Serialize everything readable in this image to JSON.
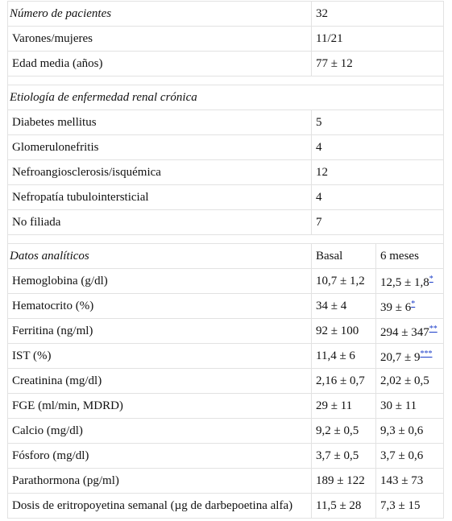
{
  "patients": {
    "header_label": "Número de pacientes",
    "header_value": "32",
    "rows": [
      {
        "label": "Varones/mujeres",
        "value": "11/21"
      },
      {
        "label": "Edad media (años)",
        "value": "77 ± 12"
      }
    ]
  },
  "etiology": {
    "header_label": "Etiología de enfermedad renal crónica",
    "rows": [
      {
        "label": "Diabetes mellitus",
        "value": "5"
      },
      {
        "label": "Glomerulonefritis",
        "value": "4"
      },
      {
        "label": "Nefroangiosclerosis/isquémica",
        "value": "12"
      },
      {
        "label": "Nefropatía tubulointersticial",
        "value": "4"
      },
      {
        "label": "No filiada",
        "value": "7"
      }
    ]
  },
  "lab": {
    "header_label": "Datos analíticos",
    "col_basal": "Basal",
    "col_6m": "6 meses",
    "rows": [
      {
        "label": "Hemoglobina (g/dl)",
        "basal": "10,7 ± 1,2",
        "m6": "12,5 ± 1,8",
        "note": "*"
      },
      {
        "label": "Hematocrito (%)",
        "basal": "34 ± 4",
        "m6": "39 ± 6",
        "note": "*"
      },
      {
        "label": "Ferritina (ng/ml)",
        "basal": "92 ± 100",
        "m6": "294 ± 347",
        "note": "**"
      },
      {
        "label": "IST (%)",
        "basal": "11,4 ± 6",
        "m6": "20,7 ± 9",
        "note": "***"
      },
      {
        "label": "Creatinina (mg/dl)",
        "basal": "2,16 ± 0,7",
        "m6": "2,02 ± 0,5",
        "note": ""
      },
      {
        "label": "FGE (ml/min, MDRD)",
        "basal": "29 ± 11",
        "m6": "30 ± 11",
        "note": ""
      },
      {
        "label": "Calcio (mg/dl)",
        "basal": "9,2 ± 0,5",
        "m6": "9,3 ± 0,6",
        "note": ""
      },
      {
        "label": "Fósforo (mg/dl)",
        "basal": "3,7 ± 0,5",
        "m6": "3,7 ± 0,6",
        "note": ""
      },
      {
        "label": "Parathormona (pg/ml)",
        "basal": "189 ± 122",
        "m6": "143 ± 73",
        "note": ""
      },
      {
        "label": "Dosis de eritropoyetina semanal (µg de darbepoetina alfa)",
        "basal": "11,5 ± 28",
        "m6": "7,3 ± 15",
        "note": ""
      }
    ]
  }
}
